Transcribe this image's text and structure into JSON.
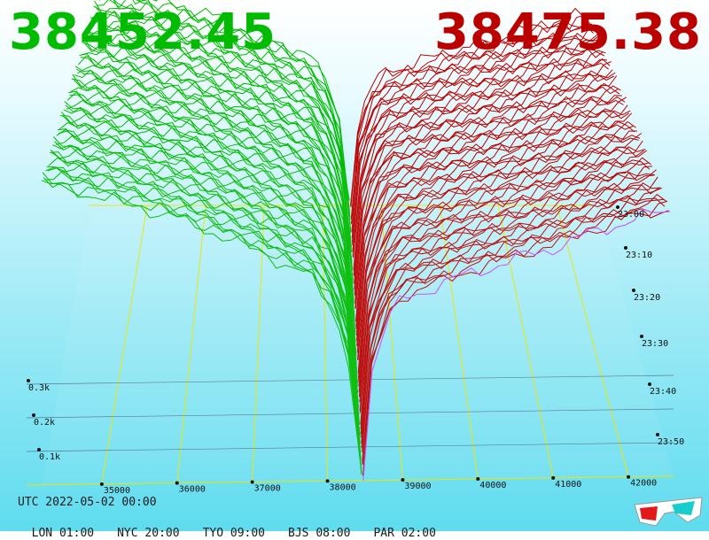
{
  "header": {
    "bid_price": "38452.45",
    "ask_price": "38475.38",
    "bid_color": "#00bb00",
    "ask_color": "#bb0000"
  },
  "footer": {
    "utc_label": "UTC 2022-05-02 00:00",
    "timezones": [
      {
        "label": "LON 01:00"
      },
      {
        "label": "NYC 20:00"
      },
      {
        "label": "TYO 09:00"
      },
      {
        "label": "BJS 08:00"
      },
      {
        "label": "PAR 02:00"
      }
    ]
  },
  "icons": {
    "corner_icon": "3d-glasses-icon"
  },
  "chart_data": {
    "type": "area",
    "variant": "3d order book depth over time",
    "x_axis": {
      "ticks": [
        "35000",
        "36000",
        "37000",
        "38000",
        "39000",
        "40000",
        "41000",
        "42000"
      ]
    },
    "z_axis": {
      "ticks": [
        "0.1k",
        "0.2k",
        "0.3k"
      ]
    },
    "time_axis": {
      "ticks": [
        "23:00",
        "23:10",
        "23:20",
        "23:30",
        "23:40",
        "23:50"
      ]
    },
    "mid_price": 38463.9,
    "bid_series_color": "#00bb00",
    "ask_series_color": "#bb0000",
    "latest_series_color": "#cc44ff",
    "grid_color": "#e6e600",
    "snapshots": 60,
    "bid_depth_profile": {
      "price": [
        34200,
        35000,
        36000,
        37000,
        37800,
        38100,
        38300,
        38452
      ],
      "cum_volume": [
        340,
        325,
        300,
        265,
        230,
        190,
        130,
        0
      ]
    },
    "ask_depth_profile": {
      "price": [
        38475,
        38600,
        38800,
        39000,
        40000,
        41000,
        42000,
        42600
      ],
      "cum_volume": [
        0,
        130,
        180,
        205,
        235,
        260,
        290,
        300
      ]
    }
  }
}
